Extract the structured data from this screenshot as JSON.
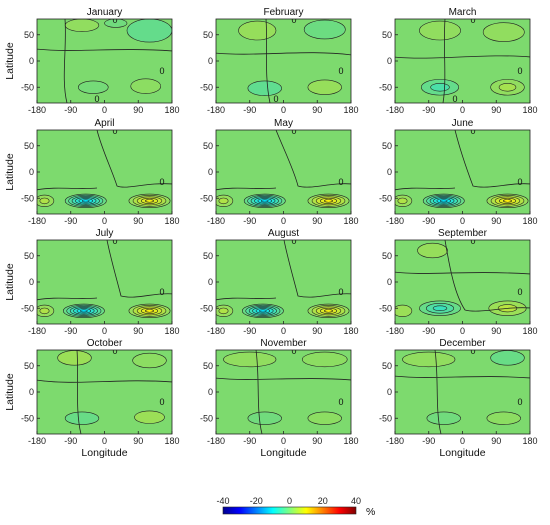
{
  "chart_data": {
    "type": "contour",
    "layout": {
      "rows": 4,
      "cols": 3
    },
    "panels": [
      {
        "title": "January",
        "zero_labels": [
          "0",
          "0",
          "0"
        ]
      },
      {
        "title": "February",
        "zero_labels": [
          "0",
          "0",
          "0"
        ]
      },
      {
        "title": "March",
        "zero_labels": [
          "0",
          "0",
          "0"
        ]
      },
      {
        "title": "April",
        "zero_labels": [
          "0",
          "0"
        ]
      },
      {
        "title": "May",
        "zero_labels": [
          "0",
          "0"
        ]
      },
      {
        "title": "June",
        "zero_labels": [
          "0",
          "0"
        ]
      },
      {
        "title": "July",
        "zero_labels": [
          "0",
          "0"
        ]
      },
      {
        "title": "August",
        "zero_labels": [
          "0",
          "0"
        ]
      },
      {
        "title": "September",
        "zero_labels": [
          "0",
          "0"
        ]
      },
      {
        "title": "October",
        "zero_labels": [
          "0",
          "0"
        ]
      },
      {
        "title": "November",
        "zero_labels": [
          "0",
          "0"
        ]
      },
      {
        "title": "December",
        "zero_labels": [
          "0",
          "0"
        ]
      }
    ],
    "xlabel": "Longitude",
    "ylabel": "Latitude",
    "xlim": [
      -180,
      180
    ],
    "ylim": [
      -80,
      80
    ],
    "x_ticks": [
      "-180",
      "-90",
      "0",
      "90",
      "180"
    ],
    "y_ticks": [
      "50",
      "0",
      "-50"
    ],
    "colorbar": {
      "ticks": [
        "-40",
        "-20",
        "0",
        "20",
        "40"
      ],
      "unit": "%",
      "range": [
        -40,
        40
      ],
      "colors": [
        "#00008f",
        "#0000ff",
        "#0080ff",
        "#00ffff",
        "#7fff7f",
        "#ffff00",
        "#ff8000",
        "#ff0000",
        "#800000"
      ]
    }
  }
}
